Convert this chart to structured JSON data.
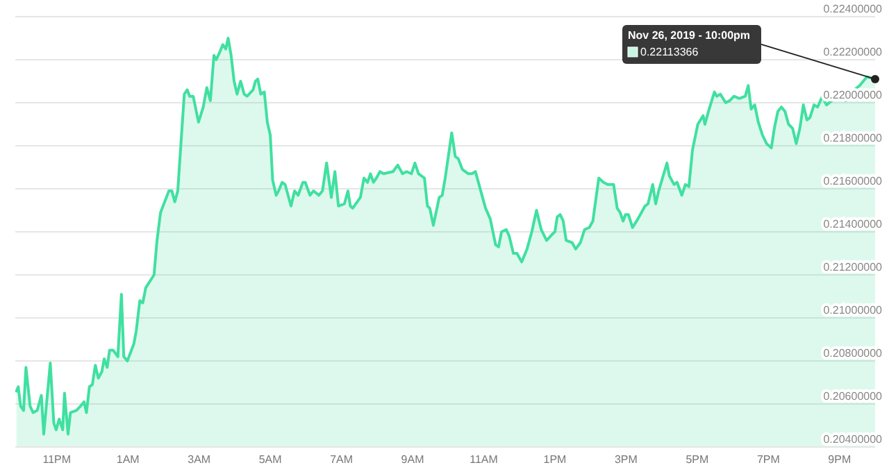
{
  "chart_data": {
    "type": "area",
    "grid": "y",
    "xlim": [
      "2019-11-25T21:50",
      "2019-11-26T22:00"
    ],
    "ylim": [
      0.204,
      0.224
    ],
    "xticks": [
      {
        "value": "2019-11-25T23:00",
        "label": "11PM"
      },
      {
        "value": "2019-11-26T01:00",
        "label": "1AM"
      },
      {
        "value": "2019-11-26T03:00",
        "label": "3AM"
      },
      {
        "value": "2019-11-26T05:00",
        "label": "5AM"
      },
      {
        "value": "2019-11-26T07:00",
        "label": "7AM"
      },
      {
        "value": "2019-11-26T09:00",
        "label": "9AM"
      },
      {
        "value": "2019-11-26T11:00",
        "label": "11AM"
      },
      {
        "value": "2019-11-26T13:00",
        "label": "1PM"
      },
      {
        "value": "2019-11-26T15:00",
        "label": "3PM"
      },
      {
        "value": "2019-11-26T17:00",
        "label": "5PM"
      },
      {
        "value": "2019-11-26T19:00",
        "label": "7PM"
      },
      {
        "value": "2019-11-26T21:00",
        "label": "9PM"
      }
    ],
    "yticks": [
      {
        "value": 0.204,
        "label": "0.20400000"
      },
      {
        "value": 0.206,
        "label": "0.20600000"
      },
      {
        "value": 0.208,
        "label": "0.20800000"
      },
      {
        "value": 0.21,
        "label": "0.21000000"
      },
      {
        "value": 0.212,
        "label": "0.21200000"
      },
      {
        "value": 0.214,
        "label": "0.21400000"
      },
      {
        "value": 0.216,
        "label": "0.21600000"
      },
      {
        "value": 0.218,
        "label": "0.21800000"
      },
      {
        "value": 0.22,
        "label": "0.22000000"
      },
      {
        "value": 0.222,
        "label": "0.22200000"
      },
      {
        "value": 0.224,
        "label": "0.22400000"
      }
    ],
    "annotations": [
      {
        "text": "Nov 26, 2019 - 10:00pm",
        "x": "2019-11-26T22:00",
        "y": 0.2211
      },
      "0.22113366"
    ],
    "series": [
      {
        "color": "#40e0a0",
        "x": [
          "2019-11-25T21:52",
          "2019-11-25T21:55",
          "2019-11-25T21:59",
          "2019-11-25T22:04",
          "2019-11-25T22:08",
          "2019-11-25T22:15",
          "2019-11-25T22:20",
          "2019-11-25T22:27",
          "2019-11-25T22:34",
          "2019-11-25T22:38",
          "2019-11-25T22:49",
          "2019-11-25T22:55",
          "2019-11-25T22:59",
          "2019-11-25T23:04",
          "2019-11-25T23:10",
          "2019-11-25T23:13",
          "2019-11-25T23:19",
          "2019-11-25T23:23",
          "2019-11-25T23:33",
          "2019-11-25T23:40",
          "2019-11-25T23:46",
          "2019-11-25T23:50",
          "2019-11-25T23:55",
          "2019-11-26T00:00",
          "2019-11-26T00:05",
          "2019-11-26T00:10",
          "2019-11-26T00:16",
          "2019-11-26T00:20",
          "2019-11-26T00:25",
          "2019-11-26T00:29",
          "2019-11-26T00:35",
          "2019-11-26T00:43",
          "2019-11-26T00:49",
          "2019-11-26T00:53",
          "2019-11-26T00:59",
          "2019-11-26T01:10",
          "2019-11-26T01:14",
          "2019-11-26T01:20",
          "2019-11-26T01:25",
          "2019-11-26T01:30",
          "2019-11-26T01:44",
          "2019-11-26T01:49",
          "2019-11-26T01:55",
          "2019-11-26T02:09",
          "2019-11-26T02:14",
          "2019-11-26T02:19",
          "2019-11-26T02:24",
          "2019-11-26T02:35",
          "2019-11-26T02:40",
          "2019-11-26T02:44",
          "2019-11-26T02:50",
          "2019-11-26T02:59",
          "2019-11-26T03:07",
          "2019-11-26T03:13",
          "2019-11-26T03:19",
          "2019-11-26T03:25",
          "2019-11-26T03:29",
          "2019-11-26T03:34",
          "2019-11-26T03:40",
          "2019-11-26T03:45",
          "2019-11-26T03:49",
          "2019-11-26T03:54",
          "2019-11-26T03:59",
          "2019-11-26T04:04",
          "2019-11-26T04:10",
          "2019-11-26T04:16",
          "2019-11-26T04:21",
          "2019-11-26T04:31",
          "2019-11-26T04:35",
          "2019-11-26T04:39",
          "2019-11-26T04:44",
          "2019-11-26T04:50",
          "2019-11-26T04:55",
          "2019-11-26T05:00",
          "2019-11-26T05:04",
          "2019-11-26T05:10",
          "2019-11-26T05:14",
          "2019-11-26T05:20",
          "2019-11-26T05:25",
          "2019-11-26T05:35",
          "2019-11-26T05:41",
          "2019-11-26T05:47",
          "2019-11-26T05:55",
          "2019-11-26T05:59",
          "2019-11-26T06:07",
          "2019-11-26T06:13",
          "2019-11-26T06:22",
          "2019-11-26T06:28",
          "2019-11-26T06:35",
          "2019-11-26T06:43",
          "2019-11-26T06:49",
          "2019-11-26T06:55",
          "2019-11-26T07:05",
          "2019-11-26T07:11",
          "2019-11-26T07:15",
          "2019-11-26T07:19",
          "2019-11-26T07:32",
          "2019-11-26T07:38",
          "2019-11-26T07:44",
          "2019-11-26T07:49",
          "2019-11-26T07:54",
          "2019-11-26T07:59",
          "2019-11-26T08:05",
          "2019-11-26T08:11",
          "2019-11-26T08:27",
          "2019-11-26T08:35",
          "2019-11-26T08:43",
          "2019-11-26T08:50",
          "2019-11-26T08:58",
          "2019-11-26T09:04",
          "2019-11-26T09:10",
          "2019-11-26T09:20",
          "2019-11-26T09:25",
          "2019-11-26T09:29",
          "2019-11-26T09:35",
          "2019-11-26T09:45",
          "2019-11-26T09:50",
          "2019-11-26T09:55",
          "2019-11-26T10:06",
          "2019-11-26T10:12",
          "2019-11-26T10:17",
          "2019-11-26T10:24",
          "2019-11-26T10:34",
          "2019-11-26T10:40",
          "2019-11-26T10:46",
          "2019-11-26T10:55",
          "2019-11-26T11:03",
          "2019-11-26T11:11",
          "2019-11-26T11:20",
          "2019-11-26T11:25",
          "2019-11-26T11:30",
          "2019-11-26T11:38",
          "2019-11-26T11:43",
          "2019-11-26T11:50",
          "2019-11-26T11:56",
          "2019-11-26T12:04",
          "2019-11-26T12:13",
          "2019-11-26T12:21",
          "2019-11-26T12:29",
          "2019-11-26T12:37",
          "2019-11-26T12:46",
          "2019-11-26T12:56",
          "2019-11-26T13:00",
          "2019-11-26T13:04",
          "2019-11-26T13:09",
          "2019-11-26T13:14",
          "2019-11-26T13:19",
          "2019-11-26T13:29",
          "2019-11-26T13:35",
          "2019-11-26T13:43",
          "2019-11-26T13:50",
          "2019-11-26T13:58",
          "2019-11-26T14:04",
          "2019-11-26T14:14",
          "2019-11-26T14:22",
          "2019-11-26T14:29",
          "2019-11-26T14:39",
          "2019-11-26T14:45",
          "2019-11-26T14:50",
          "2019-11-26T14:55",
          "2019-11-26T14:59",
          "2019-11-26T15:04",
          "2019-11-26T15:11",
          "2019-11-26T15:20",
          "2019-11-26T15:32",
          "2019-11-26T15:37",
          "2019-11-26T15:45",
          "2019-11-26T15:50",
          "2019-11-26T15:55",
          "2019-11-26T16:09",
          "2019-11-26T16:13",
          "2019-11-26T16:21",
          "2019-11-26T16:26",
          "2019-11-26T16:34",
          "2019-11-26T16:40",
          "2019-11-26T16:46",
          "2019-11-26T16:52",
          "2019-11-26T17:01",
          "2019-11-26T17:10",
          "2019-11-26T17:13",
          "2019-11-26T17:19",
          "2019-11-26T17:29",
          "2019-11-26T17:33",
          "2019-11-26T17:39",
          "2019-11-26T17:48",
          "2019-11-26T17:55",
          "2019-11-26T18:02",
          "2019-11-26T18:11",
          "2019-11-26T18:21",
          "2019-11-26T18:26",
          "2019-11-26T18:31",
          "2019-11-26T18:37",
          "2019-11-26T18:43",
          "2019-11-26T18:50",
          "2019-11-26T18:57",
          "2019-11-26T19:05",
          "2019-11-26T19:10",
          "2019-11-26T19:16",
          "2019-11-26T19:22",
          "2019-11-26T19:28",
          "2019-11-26T19:34",
          "2019-11-26T19:41",
          "2019-11-26T19:47",
          "2019-11-26T19:53",
          "2019-11-26T19:59",
          "2019-11-26T20:05",
          "2019-11-26T20:10",
          "2019-11-26T20:17",
          "2019-11-26T20:23",
          "2019-11-26T20:31",
          "2019-11-26T20:38",
          "2019-11-26T20:47",
          "2019-11-26T20:54",
          "2019-11-26T21:02",
          "2019-11-26T21:11",
          "2019-11-26T21:17",
          "2019-11-26T21:25",
          "2019-11-26T21:34",
          "2019-11-26T21:46",
          "2019-11-26T22:00"
        ],
        "values": [
          0.2066,
          0.2068,
          0.2059,
          0.2057,
          0.2077,
          0.2059,
          0.2056,
          0.2057,
          0.2064,
          0.2046,
          0.2079,
          0.2051,
          0.2048,
          0.2053,
          0.2048,
          0.2065,
          0.2046,
          0.2056,
          0.2057,
          0.2059,
          0.2061,
          0.2056,
          0.2068,
          0.2069,
          0.2078,
          0.2072,
          0.2075,
          0.2081,
          0.2077,
          0.2085,
          0.2085,
          0.2082,
          0.2111,
          0.2082,
          0.208,
          0.2088,
          0.2094,
          0.2108,
          0.2107,
          0.2114,
          0.212,
          0.2136,
          0.2149,
          0.2159,
          0.2159,
          0.2154,
          0.2159,
          0.2204,
          0.2206,
          0.2203,
          0.2203,
          0.2191,
          0.2198,
          0.2207,
          0.2201,
          0.2222,
          0.222,
          0.2223,
          0.2227,
          0.2225,
          0.223,
          0.2222,
          0.221,
          0.2204,
          0.221,
          0.2204,
          0.2203,
          0.2206,
          0.221,
          0.2211,
          0.2204,
          0.2205,
          0.2191,
          0.2185,
          0.2164,
          0.2157,
          0.2159,
          0.2163,
          0.2162,
          0.2152,
          0.2159,
          0.2157,
          0.2163,
          0.2163,
          0.2157,
          0.2159,
          0.2157,
          0.2159,
          0.2172,
          0.2156,
          0.2168,
          0.2152,
          0.2153,
          0.2159,
          0.2152,
          0.2151,
          0.2156,
          0.2165,
          0.2163,
          0.2167,
          0.2163,
          0.2165,
          0.2168,
          0.2167,
          0.2168,
          0.2171,
          0.2167,
          0.2168,
          0.2167,
          0.2172,
          0.2167,
          0.2165,
          0.2152,
          0.2151,
          0.2143,
          0.2156,
          0.2157,
          0.2165,
          0.2186,
          0.2175,
          0.2174,
          0.2169,
          0.2167,
          0.2167,
          0.2168,
          0.2159,
          0.2151,
          0.2146,
          0.2134,
          0.2133,
          0.214,
          0.2141,
          0.2138,
          0.213,
          0.213,
          0.2126,
          0.2132,
          0.214,
          0.215,
          0.2141,
          0.2136,
          0.2139,
          0.214,
          0.2147,
          0.2148,
          0.2145,
          0.2136,
          0.2135,
          0.2132,
          0.2135,
          0.2141,
          0.2142,
          0.2145,
          0.2165,
          0.2163,
          0.2162,
          0.2162,
          0.2151,
          0.2149,
          0.2145,
          0.2148,
          0.2148,
          0.2142,
          0.2146,
          0.2152,
          0.2153,
          0.2162,
          0.2153,
          0.2159,
          0.2172,
          0.2166,
          0.2162,
          0.2163,
          0.2157,
          0.2162,
          0.2161,
          0.2178,
          0.219,
          0.2194,
          0.219,
          0.2196,
          0.2205,
          0.2203,
          0.2204,
          0.22,
          0.2201,
          0.2203,
          0.2202,
          0.2203,
          0.2208,
          0.2197,
          0.2199,
          0.2191,
          0.2185,
          0.2181,
          0.2179,
          0.2188,
          0.2196,
          0.2198,
          0.2196,
          0.219,
          0.2188,
          0.2181,
          0.2188,
          0.2199,
          0.2192,
          0.2193,
          0.2199,
          0.2198,
          0.2203,
          0.2199,
          0.2201,
          0.2204,
          0.2202,
          0.2201,
          0.2204,
          0.2206,
          0.2208,
          0.2212,
          0.2211
        ]
      }
    ]
  }
}
